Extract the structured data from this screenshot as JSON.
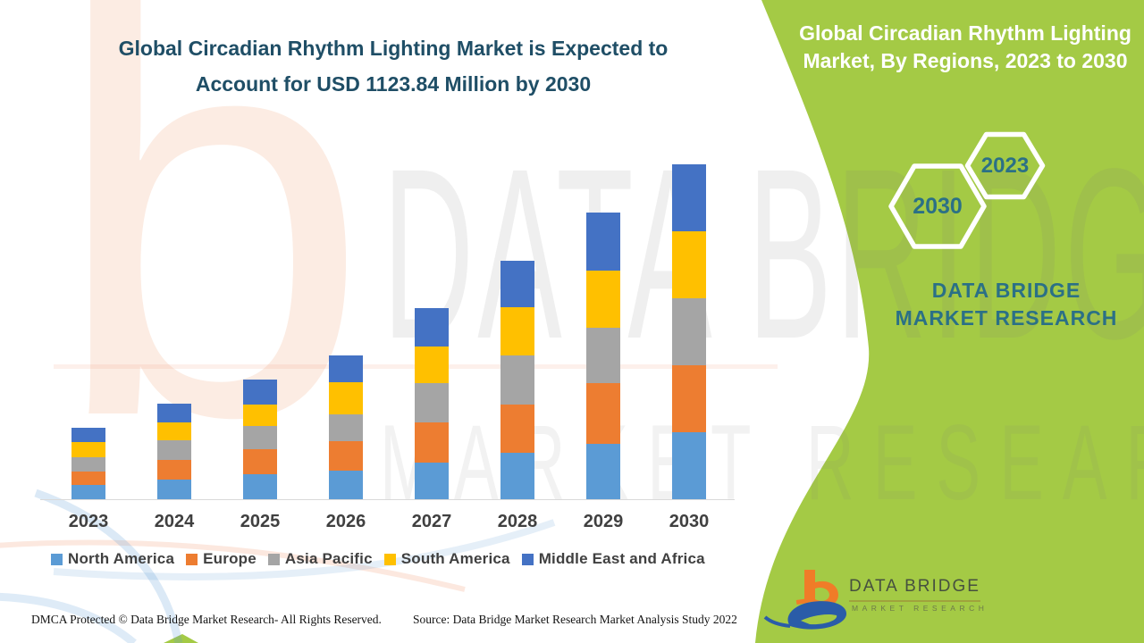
{
  "header": {
    "title": "Global Circadian Rhythm Lighting Market is Expected to Account for USD 1123.84 Million by 2030"
  },
  "side_panel": {
    "title": "Global Circadian Rhythm Lighting Market, By Regions, 2023 to 2030",
    "hexagons": [
      {
        "label": "2023"
      },
      {
        "label": "2030"
      }
    ],
    "brand_text": "DATA BRIDGE MARKET RESEARCH"
  },
  "chart_data": {
    "type": "bar",
    "stacked": true,
    "title": "Global Circadian Rhythm Lighting Market, By Regions, 2023 to 2030",
    "unit": "USD Million",
    "categories": [
      "2023",
      "2024",
      "2025",
      "2026",
      "2027",
      "2028",
      "2029",
      "2030"
    ],
    "series": [
      {
        "name": "North America",
        "color": "#5B9BD5",
        "values": [
          49,
          65,
          85,
          97,
          123,
          157,
          187,
          224.8
        ]
      },
      {
        "name": "Europe",
        "color": "#ED7D31",
        "values": [
          45,
          67,
          82,
          97,
          134,
          160,
          203,
          224.8
        ]
      },
      {
        "name": "Asia Pacific",
        "color": "#A5A5A5",
        "values": [
          48,
          65,
          80,
          91,
          133,
          166,
          185,
          224.8
        ]
      },
      {
        "name": "South America",
        "color": "#FFC000",
        "values": [
          51,
          60,
          70,
          107,
          123,
          162,
          192,
          224.8
        ]
      },
      {
        "name": "Middle East and Africa",
        "color": "#4472C4",
        "values": [
          46,
          63,
          85,
          90,
          129,
          155,
          195,
          224.64
        ]
      }
    ],
    "total_2030": 1123.84,
    "ylim": [
      0,
      1200
    ],
    "grid": false,
    "legend_position": "bottom",
    "values_estimated_from_bar_heights": true
  },
  "footer": {
    "left": "DMCA Protected © Data Bridge Market Research- All Rights Reserved.",
    "right": "Source: Data Bridge Market Research Market Analysis Study 2022"
  },
  "logo": {
    "line1": "DATA BRIDGE",
    "line2": "MARKET RESEARCH"
  },
  "watermark": {
    "b_glyph": "b",
    "row1": "DATA BRIDGE",
    "row2": "MARKET RESEARCH"
  },
  "colors": {
    "panel_green": "#a4ca45",
    "title_blue": "#1f4e66",
    "brand_teal": "#2b7086",
    "axis_text": "#404040",
    "logo_orange": "#f07c28",
    "logo_blue": "#2a5ca8",
    "baseline_gray": "#d9d9d9"
  }
}
